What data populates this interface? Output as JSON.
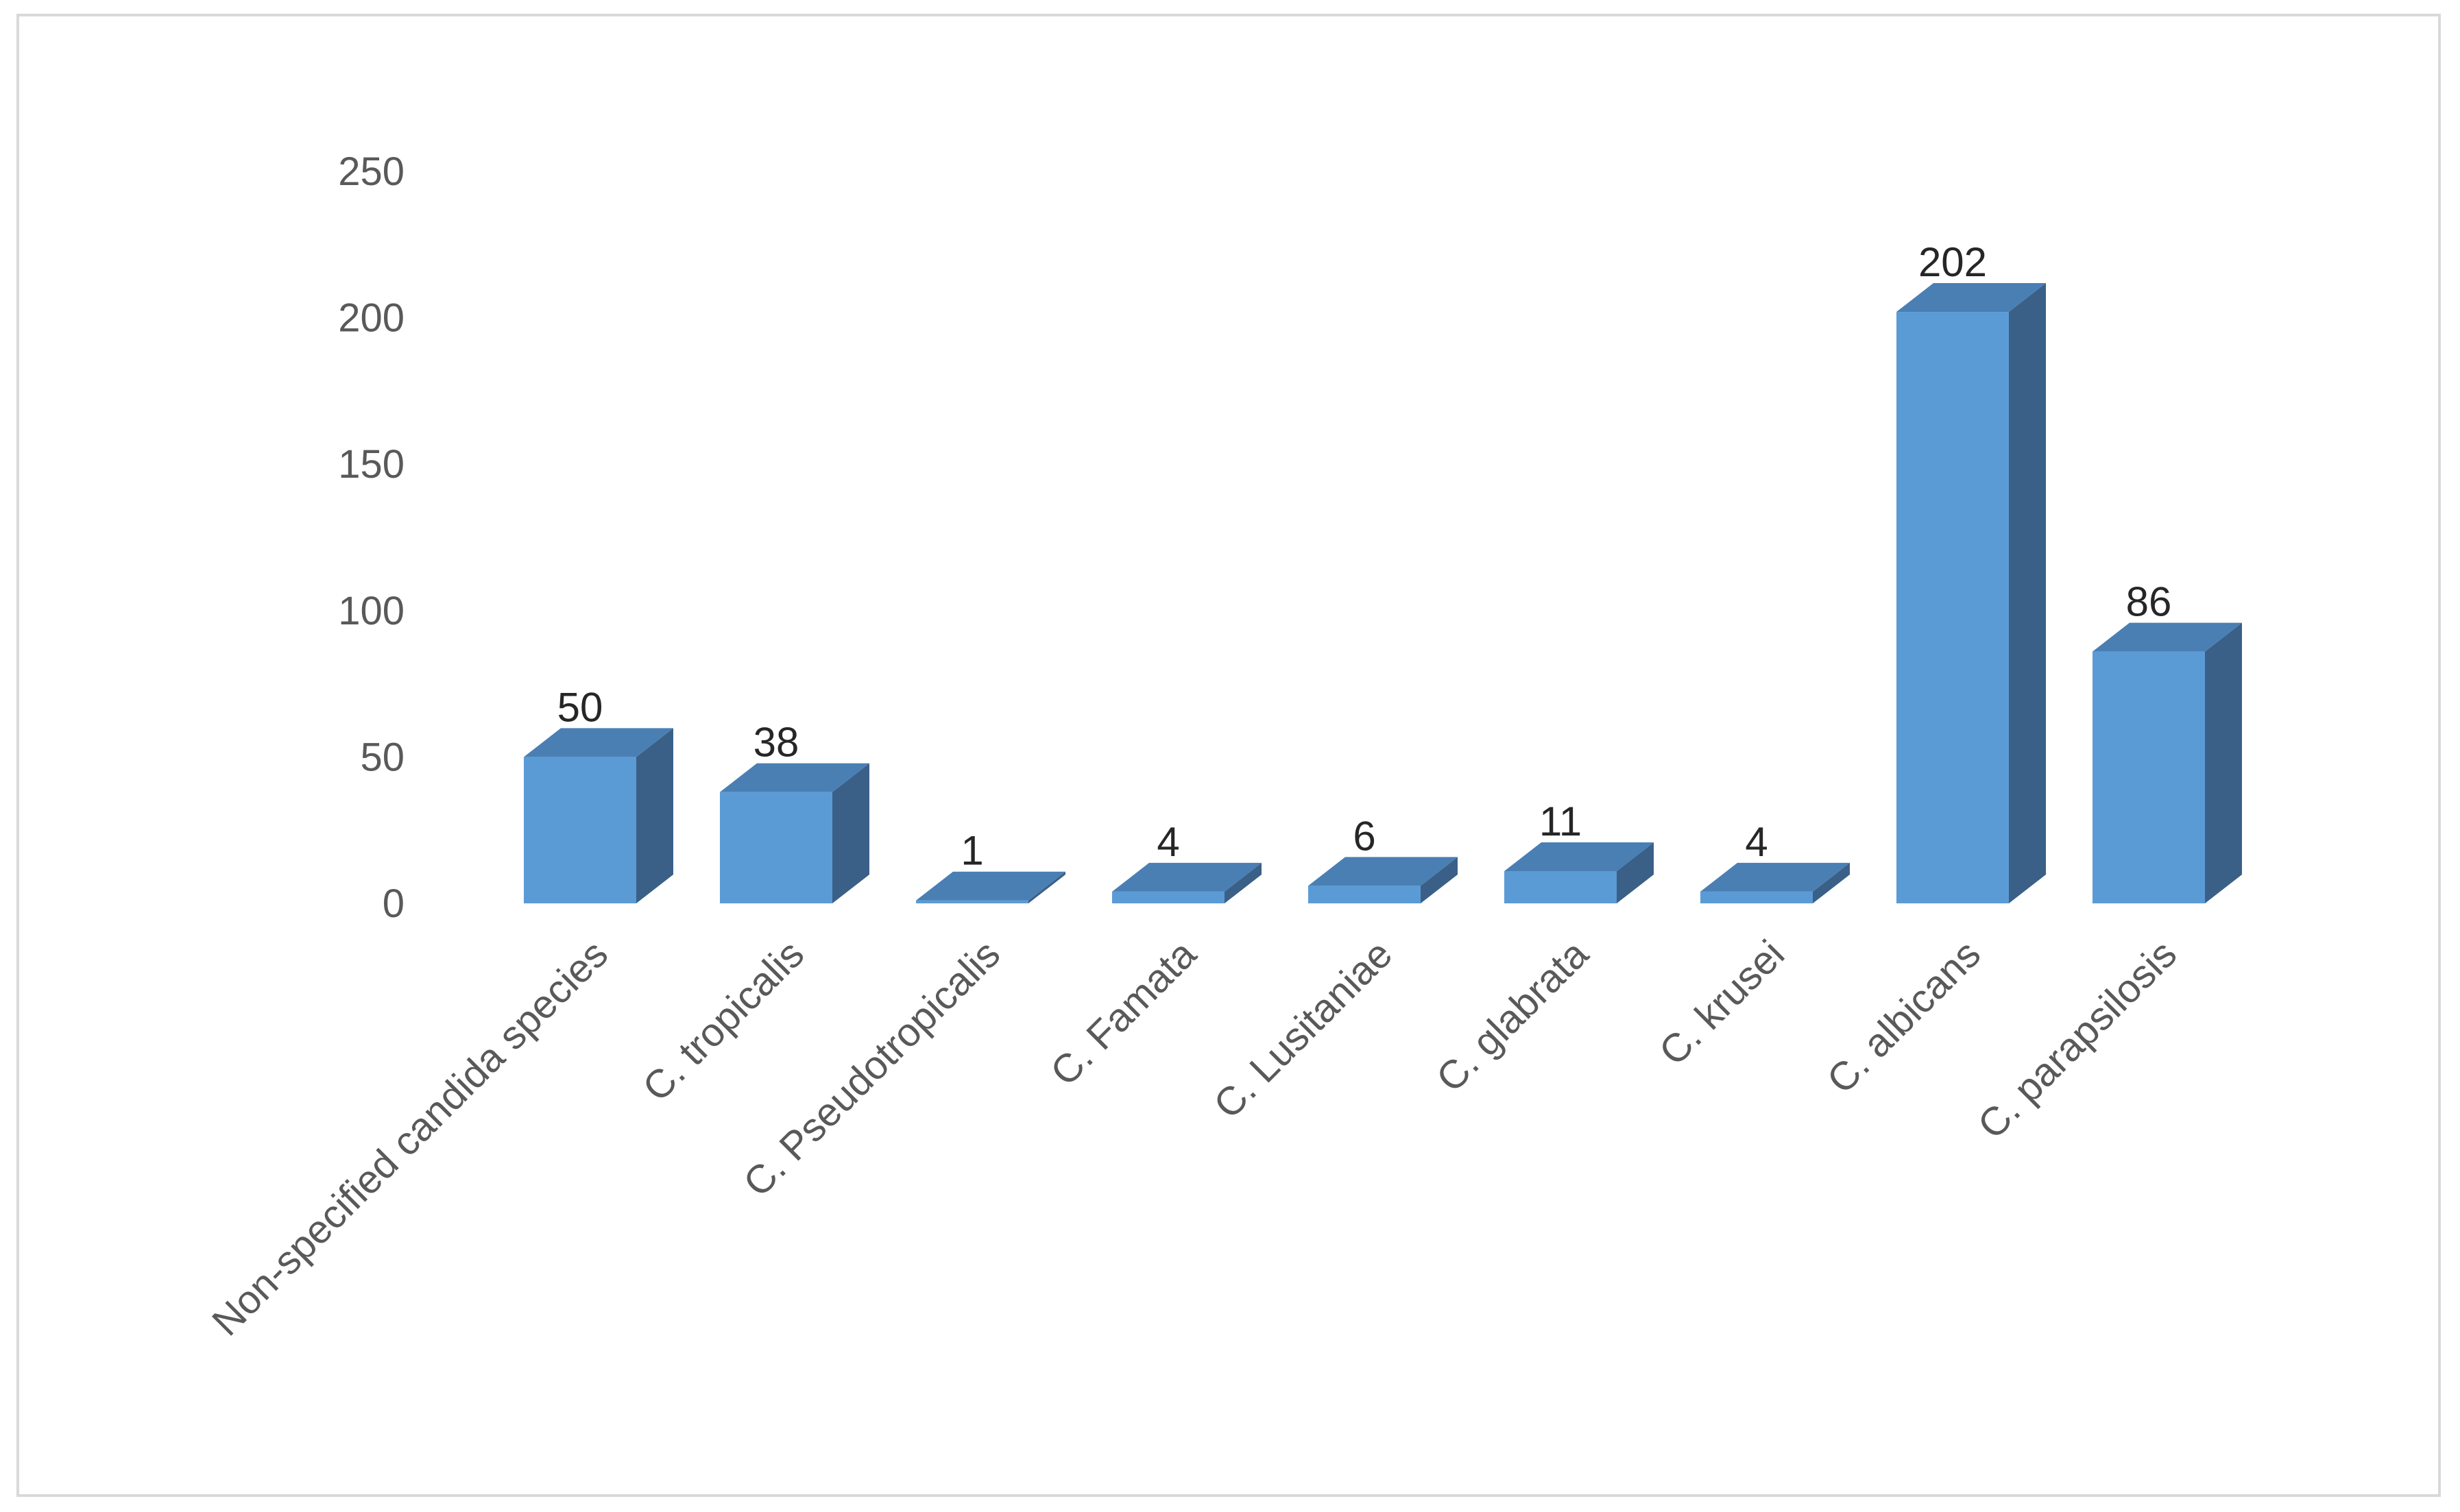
{
  "chart_data": {
    "type": "bar",
    "style": "3d-column",
    "categories": [
      "Non-specified candida species",
      "C. tropicalis",
      "C. Pseudotropicalis",
      "C. Famata",
      "C. Lusitaniae",
      "C. glabrata",
      "C. krusei",
      "C. albicans",
      "C. parapsilosis"
    ],
    "values": [
      50,
      38,
      1,
      4,
      6,
      11,
      4,
      202,
      86
    ],
    "title": "",
    "xlabel": "",
    "ylabel": "",
    "ylim": [
      0,
      250
    ],
    "yticks": [
      "0",
      "50",
      "100",
      "150",
      "200",
      "250"
    ],
    "data_labels": true,
    "grid": false,
    "legend": "none",
    "colors": {
      "front": "#5b9bd5",
      "side": "#3a6088",
      "top": "#4a7fb4"
    }
  }
}
